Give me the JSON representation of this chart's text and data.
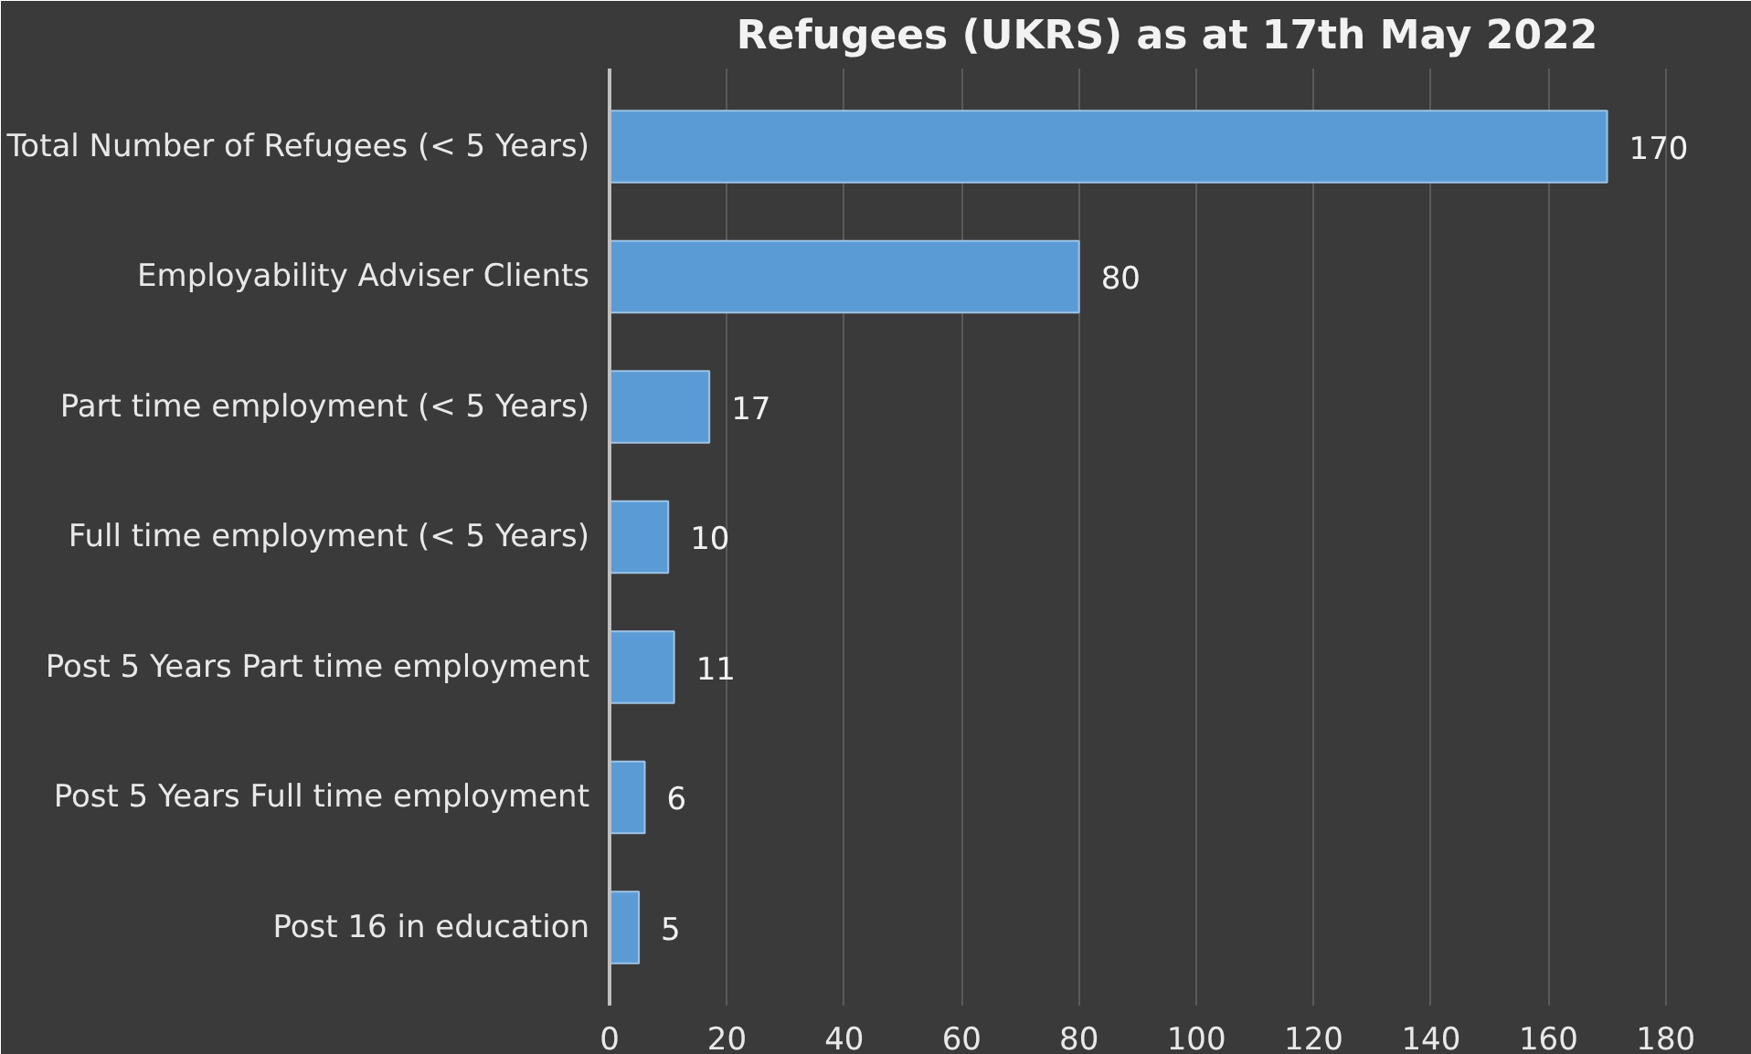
{
  "chart_data": {
    "type": "bar",
    "orientation": "horizontal",
    "title": "Refugees (UKRS) as at 17th May 2022",
    "categories": [
      "Total Number of Refugees (< 5 Years)",
      "Employability Adviser Clients",
      "Part time employment (< 5 Years)",
      "Full time employment (< 5 Years)",
      "Post 5 Years Part time employment",
      "Post 5 Years Full time employment",
      "Post 16 in education"
    ],
    "values": [
      170,
      80,
      17,
      10,
      11,
      6,
      5
    ],
    "color": "#5b9bd5",
    "xlim": [
      0,
      190
    ],
    "xticks": [
      0,
      20,
      40,
      60,
      80,
      100,
      120,
      140,
      160,
      180
    ],
    "grid": "x",
    "data_labels": true,
    "legend": false
  }
}
